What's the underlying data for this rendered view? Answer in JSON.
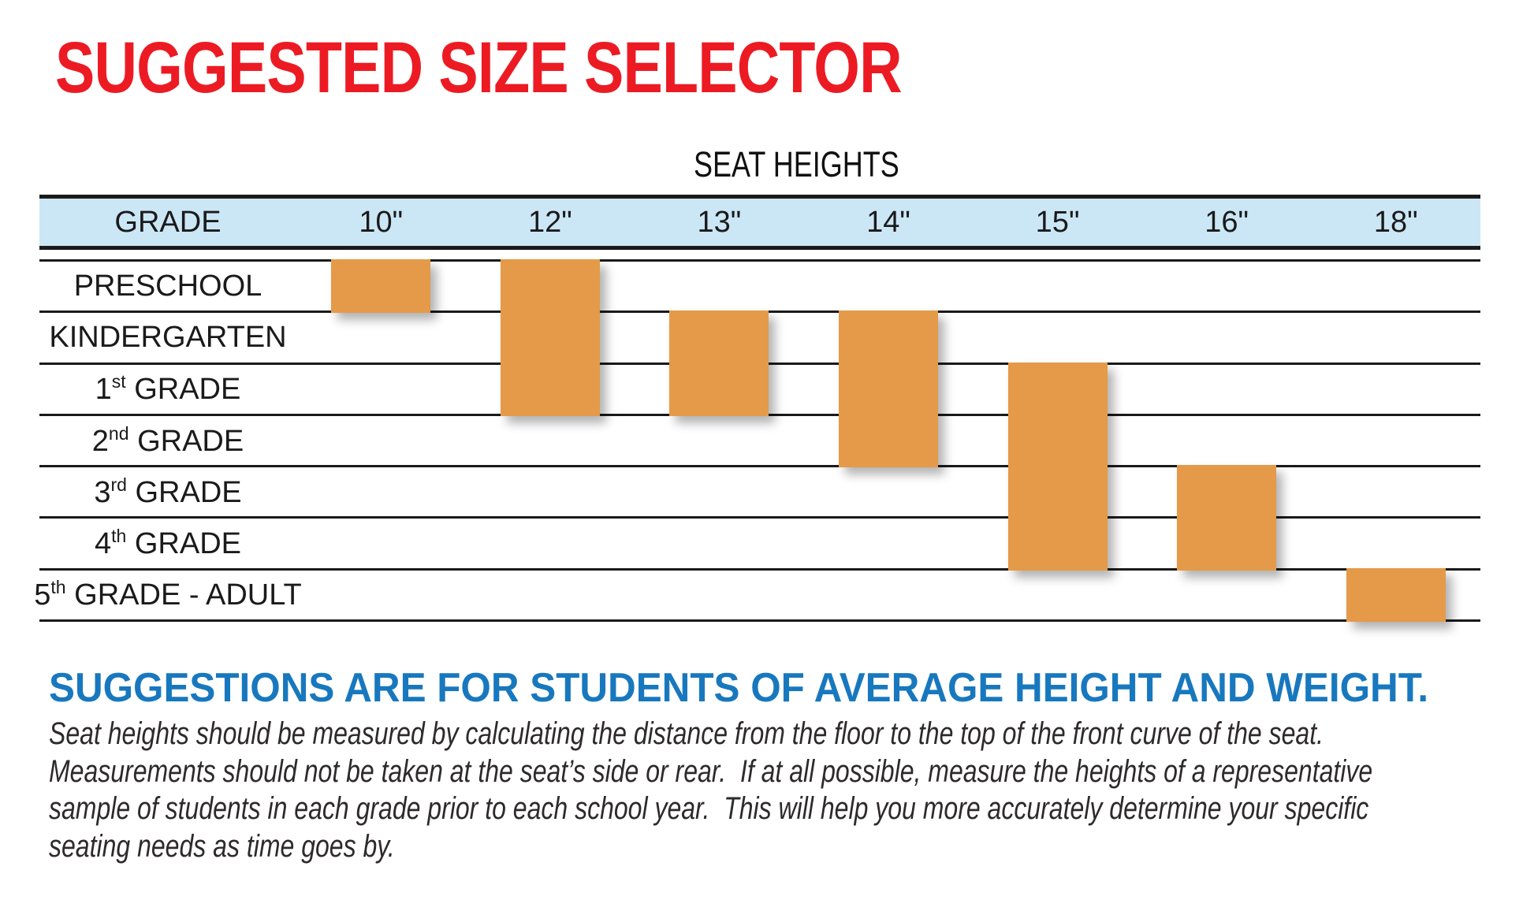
{
  "title": "SUGGESTED SIZE SELECTOR",
  "table": {
    "caption": "SEAT HEIGHTS",
    "grade_header": "GRADE",
    "columns": [
      "10\"",
      "12\"",
      "13\"",
      "14\"",
      "15\"",
      "16\"",
      "18\""
    ],
    "rows": [
      {
        "pre": "PRESCHOOL",
        "sup": "",
        "post": ""
      },
      {
        "pre": "KINDERGARTEN",
        "sup": "",
        "post": ""
      },
      {
        "pre": "1",
        "sup": "st",
        "post": " GRADE"
      },
      {
        "pre": "2",
        "sup": "nd",
        "post": " GRADE"
      },
      {
        "pre": "3",
        "sup": "rd",
        "post": " GRADE"
      },
      {
        "pre": "4",
        "sup": "th",
        "post": " GRADE"
      },
      {
        "pre": "5",
        "sup": "th",
        "post": " GRADE - ADULT"
      }
    ]
  },
  "chart_data": {
    "type": "bar",
    "subtype": "gantt-range-table",
    "title": "SUGGESTED SIZE SELECTOR",
    "column_group_label": "SEAT HEIGHTS",
    "categories": [
      "10\"",
      "12\"",
      "13\"",
      "14\"",
      "15\"",
      "16\"",
      "18\""
    ],
    "grade_rows": [
      "PRESCHOOL",
      "KINDERGARTEN",
      "1st GRADE",
      "2nd GRADE",
      "3rd GRADE",
      "4th GRADE",
      "5th GRADE - ADULT"
    ],
    "ranges": [
      {
        "seat_height": "10\"",
        "from_row": "PRESCHOOL",
        "to_row": "PRESCHOOL"
      },
      {
        "seat_height": "12\"",
        "from_row": "PRESCHOOL",
        "to_row": "1st GRADE"
      },
      {
        "seat_height": "13\"",
        "from_row": "KINDERGARTEN",
        "to_row": "1st GRADE"
      },
      {
        "seat_height": "14\"",
        "from_row": "KINDERGARTEN",
        "to_row": "2nd GRADE"
      },
      {
        "seat_height": "15\"",
        "from_row": "1st GRADE",
        "to_row": "4th GRADE"
      },
      {
        "seat_height": "16\"",
        "from_row": "3rd GRADE",
        "to_row": "4th GRADE"
      },
      {
        "seat_height": "18\"",
        "from_row": "5th GRADE - ADULT",
        "to_row": "5th GRADE - ADULT"
      }
    ],
    "bars": [
      {
        "col": 0,
        "row_start": 0,
        "row_end": 0
      },
      {
        "col": 1,
        "row_start": 0,
        "row_end": 2
      },
      {
        "col": 2,
        "row_start": 1,
        "row_end": 2
      },
      {
        "col": 3,
        "row_start": 1,
        "row_end": 3
      },
      {
        "col": 4,
        "row_start": 2,
        "row_end": 5
      },
      {
        "col": 5,
        "row_start": 4,
        "row_end": 5
      },
      {
        "col": 6,
        "row_start": 6,
        "row_end": 6
      }
    ],
    "legend": "none",
    "grid": "horizontal-row-lines"
  },
  "footer": {
    "heading": "SUGGESTIONS ARE FOR STUDENTS OF AVERAGE HEIGHT AND WEIGHT.",
    "paragraph_lines": [
      "Seat heights should be measured by calculating the distance from the floor to the top of the front curve of the seat.",
      "Measurements should not be taken at the seat’s side or rear.  If at all possible, measure the heights of a representative",
      "sample of students in each grade prior to each school year.  This will help you more accurately determine your specific",
      "seating needs as time goes by."
    ]
  },
  "colors": {
    "title_red": "#EC1B23",
    "heading_blue": "#1878BE",
    "header_band_blue": "#CBE7F6",
    "bar_orange": "#E49A48",
    "line_black": "#1A1A1A"
  }
}
